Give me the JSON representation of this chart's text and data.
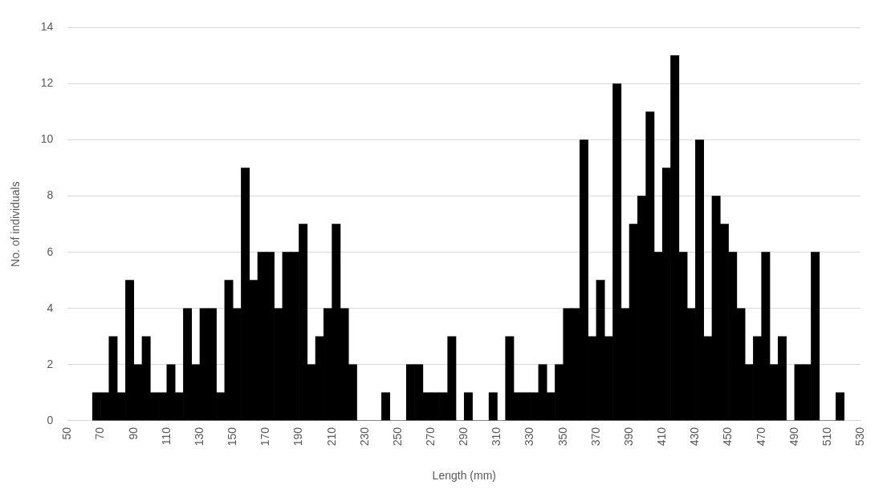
{
  "chart_data": {
    "type": "histogram",
    "xlabel": "Length (mm)",
    "ylabel": "No. of individuals",
    "bins": [
      65,
      70,
      75,
      80,
      85,
      90,
      95,
      100,
      105,
      110,
      115,
      120,
      125,
      130,
      135,
      140,
      145,
      150,
      155,
      160,
      165,
      170,
      175,
      180,
      185,
      190,
      195,
      200,
      205,
      210,
      215,
      220,
      225,
      230,
      235,
      240,
      245,
      250,
      255,
      260,
      265,
      270,
      275,
      280,
      285,
      290,
      295,
      300,
      305,
      310,
      315,
      320,
      325,
      330,
      335,
      340,
      345,
      350,
      355,
      360,
      365,
      370,
      375,
      380,
      385,
      390,
      395,
      400,
      405,
      410,
      415,
      420,
      425,
      430,
      435,
      440,
      445,
      450,
      455,
      460,
      465,
      470,
      475,
      480,
      485,
      490,
      495,
      500,
      505,
      510,
      515,
      520
    ],
    "values": [
      1,
      1,
      3,
      1,
      5,
      2,
      3,
      1,
      1,
      2,
      1,
      4,
      2,
      4,
      4,
      1,
      5,
      4,
      9,
      5,
      6,
      6,
      4,
      6,
      6,
      7,
      2,
      3,
      4,
      7,
      4,
      2,
      0,
      0,
      0,
      1,
      0,
      0,
      2,
      2,
      1,
      1,
      1,
      3,
      0,
      1,
      0,
      0,
      1,
      0,
      3,
      1,
      1,
      1,
      2,
      1,
      2,
      4,
      4,
      10,
      3,
      5,
      3,
      12,
      4,
      7,
      8,
      11,
      6,
      9,
      13,
      6,
      4,
      10,
      3,
      8,
      7,
      6,
      4,
      2,
      3,
      6,
      2,
      3,
      0,
      2,
      2,
      6,
      0,
      0,
      1
    ],
    "color": "#000000",
    "xlim": [
      50,
      530
    ],
    "xticks": [
      50,
      70,
      90,
      110,
      130,
      150,
      170,
      190,
      210,
      230,
      250,
      270,
      290,
      310,
      330,
      350,
      370,
      390,
      410,
      430,
      450,
      470,
      490,
      510,
      530
    ],
    "ylim": [
      0,
      14
    ],
    "yticks": [
      0,
      2,
      4,
      6,
      8,
      10,
      12,
      14
    ],
    "grid": "y",
    "legend": false
  }
}
